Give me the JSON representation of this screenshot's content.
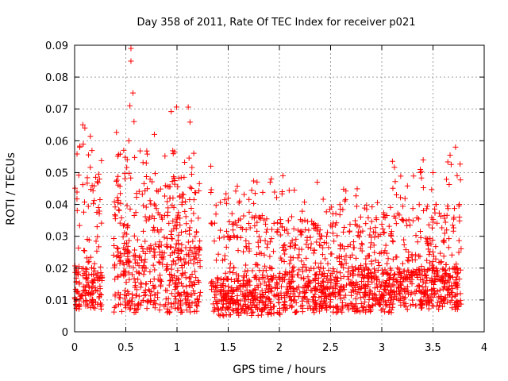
{
  "chart_data": {
    "type": "scatter",
    "title": "Day 358 of 2011, Rate Of TEC Index for receiver p021",
    "xlabel": "GPS time / hours",
    "ylabel": "ROTI / TECUs",
    "xlim": [
      0,
      4
    ],
    "ylim": [
      0,
      0.09
    ],
    "xticks": [
      "0",
      "0.5",
      "1",
      "1.5",
      "2",
      "2.5",
      "3",
      "3.5",
      "4"
    ],
    "yticks": [
      "0",
      "0.01",
      "0.02",
      "0.03",
      "0.04",
      "0.05",
      "0.06",
      "0.07",
      "0.08",
      "0.09"
    ],
    "grid": true,
    "marker": "+",
    "color": "#ff0000",
    "gap_hours": [
      0.27,
      0.38
    ],
    "data_end_hour": 3.78,
    "series": [
      {
        "name": "ROTI",
        "notable_points": [
          {
            "x": 0.55,
            "y": 0.089
          },
          {
            "x": 0.55,
            "y": 0.085
          },
          {
            "x": 0.54,
            "y": 0.071
          },
          {
            "x": 0.57,
            "y": 0.075
          },
          {
            "x": 0.58,
            "y": 0.066
          },
          {
            "x": 0.08,
            "y": 0.065
          },
          {
            "x": 0.1,
            "y": 0.064
          },
          {
            "x": 0.05,
            "y": 0.058
          },
          {
            "x": 0.48,
            "y": 0.057
          },
          {
            "x": 0.53,
            "y": 0.06
          },
          {
            "x": 3.72,
            "y": 0.058
          },
          {
            "x": 1.33,
            "y": 0.052
          },
          {
            "x": 3.5,
            "y": 0.05
          },
          {
            "x": 0.7,
            "y": 0.053
          },
          {
            "x": 2.37,
            "y": 0.047
          }
        ],
        "segments": [
          {
            "x_range": [
              0.0,
              0.27
            ],
            "base": [
              0.007,
              0.02
            ],
            "upper": 0.05,
            "spikes": [
              0.055,
              0.066
            ]
          },
          {
            "x_range": [
              0.38,
              1.23
            ],
            "base": [
              0.006,
              0.028
            ],
            "upper": 0.046,
            "spikes": [
              0.057,
              0.089
            ]
          },
          {
            "x_range": [
              1.33,
              2.05
            ],
            "base": [
              0.005,
              0.018
            ],
            "upper": 0.037,
            "spikes": [
              0.045,
              0.052
            ]
          },
          {
            "x_range": [
              2.05,
              3.1
            ],
            "base": [
              0.006,
              0.02
            ],
            "upper": 0.035,
            "spikes": [
              0.042,
              0.047
            ]
          },
          {
            "x_range": [
              3.1,
              3.78
            ],
            "base": [
              0.007,
              0.02
            ],
            "upper": 0.04,
            "spikes": [
              0.052,
              0.058
            ]
          }
        ]
      }
    ]
  }
}
